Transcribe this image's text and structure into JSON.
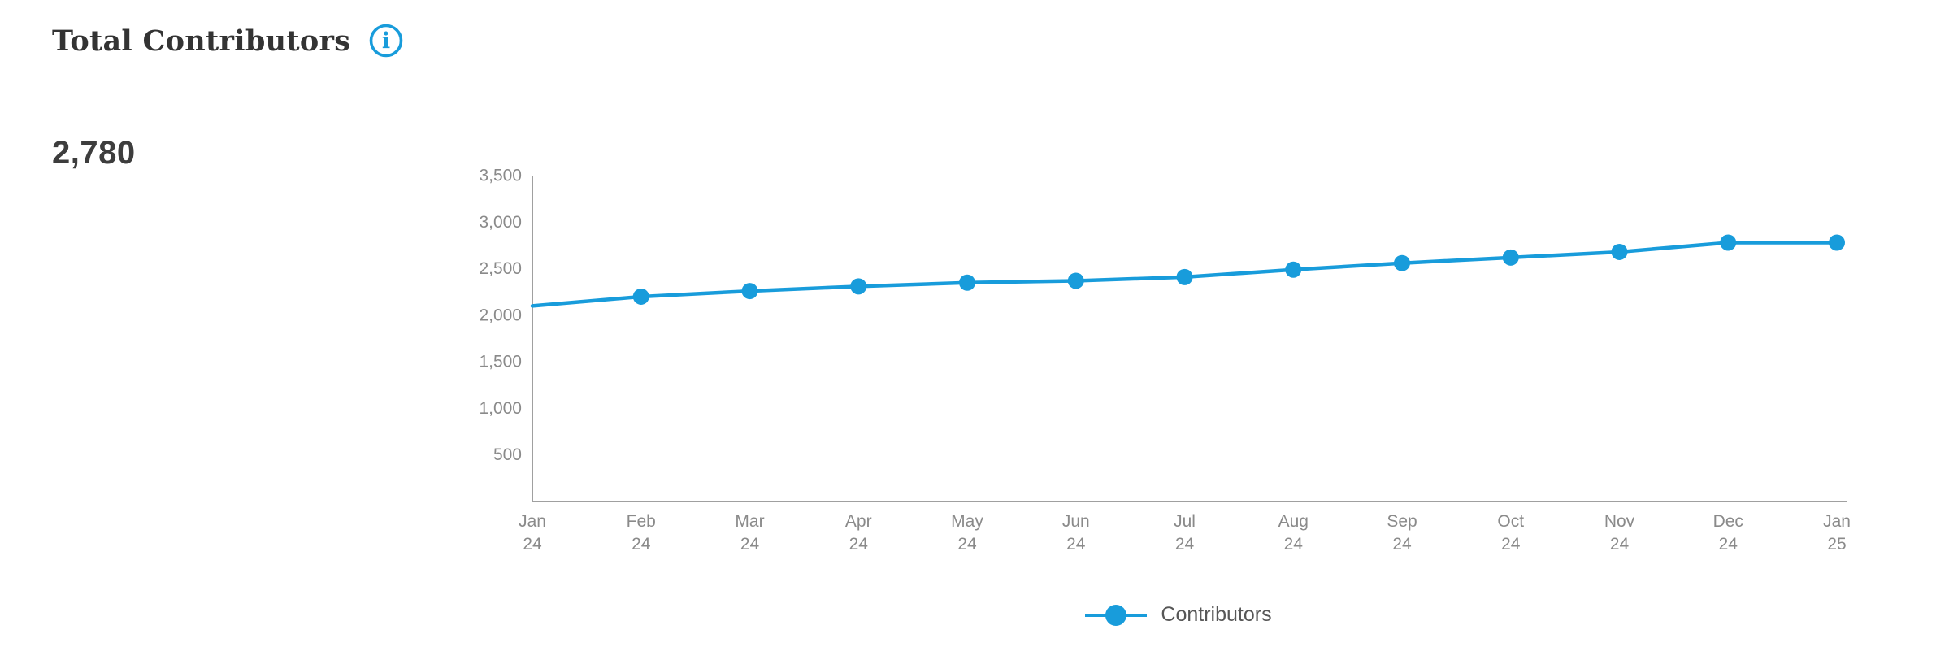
{
  "header": {
    "title": "Total Contributors",
    "info_icon": {
      "name": "info-icon",
      "glyph": "i"
    }
  },
  "headline": {
    "value": "2,780"
  },
  "legend": {
    "label": "Contributors",
    "position": "bottom"
  },
  "colors": {
    "accent": "#189CDB",
    "title_text": "#333333",
    "headline_text": "#3d3d3d",
    "axis_line": "#a0a0a0",
    "tick_text": "#8a8a8a",
    "legend_text": "#575757"
  },
  "chart_data": {
    "type": "line",
    "title": "Total Contributors",
    "categories": [
      "Jan 24",
      "Feb 24",
      "Mar 24",
      "Apr 24",
      "May 24",
      "Jun 24",
      "Jul 24",
      "Aug 24",
      "Sep 24",
      "Oct 24",
      "Nov 24",
      "Dec 24",
      "Jan 25"
    ],
    "series": [
      {
        "name": "Contributors",
        "values": [
          2100,
          2200,
          2260,
          2310,
          2350,
          2370,
          2410,
          2490,
          2560,
          2620,
          2680,
          2780,
          2780
        ]
      }
    ],
    "xlabel": "",
    "ylabel": "",
    "ylim": [
      0,
      3500
    ],
    "yticks": [
      500,
      1000,
      1500,
      2000,
      2500,
      3000,
      3500
    ],
    "grid": false,
    "legend_position": "bottom",
    "marker": "circle",
    "first_point_marker_hidden": true
  }
}
